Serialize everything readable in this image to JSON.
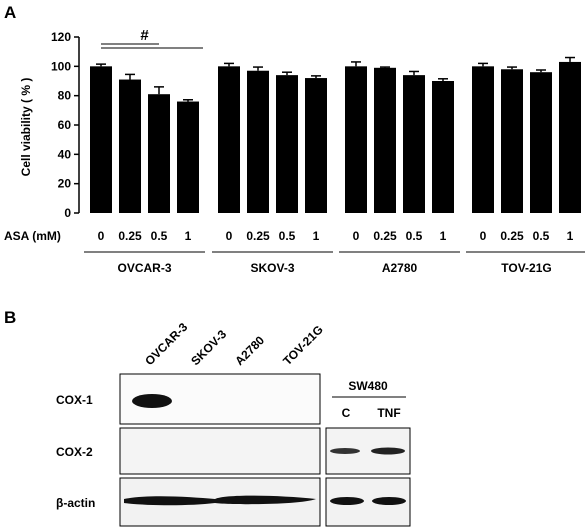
{
  "panel_a": {
    "label": "A",
    "ylabel": "Cell viability ( % )",
    "yticks": [
      "0",
      "20",
      "40",
      "60",
      "80",
      "100",
      "120"
    ],
    "dose_label": "ASA (mM)",
    "doses": [
      "0",
      "0.25",
      "0.5",
      "1"
    ],
    "significance": "#"
  },
  "panel_b": {
    "label": "B",
    "lanes": [
      "OVCAR-3",
      "SKOV-3",
      "A2780",
      "TOV-21G"
    ],
    "rows": [
      "COX-1",
      "COX-2",
      "β-actin"
    ],
    "control_title": "SW480",
    "control_lanes": [
      "C",
      "TNF"
    ]
  },
  "chart_data": {
    "type": "bar",
    "ylabel": "Cell viability ( % )",
    "ylim": [
      0,
      120
    ],
    "yticks": [
      0,
      20,
      40,
      60,
      80,
      100,
      120
    ],
    "x_label": "ASA (mM)",
    "doses": [
      "0",
      "0.25",
      "0.5",
      "1"
    ],
    "groups": [
      {
        "name": "OVCAR-3",
        "values": [
          100,
          91,
          81,
          76
        ],
        "errors": [
          1.5,
          3.5,
          5.0,
          1.2
        ]
      },
      {
        "name": "SKOV-3",
        "values": [
          100,
          97,
          94,
          92
        ],
        "errors": [
          2.0,
          2.5,
          2.0,
          1.5
        ]
      },
      {
        "name": "A2780",
        "values": [
          100,
          99,
          94,
          90
        ],
        "errors": [
          3.0,
          0.5,
          2.5,
          1.5
        ]
      },
      {
        "name": "TOV-21G",
        "values": [
          100,
          98,
          96,
          103
        ],
        "errors": [
          2.0,
          1.5,
          1.5,
          3.0
        ]
      }
    ],
    "bar_color": "#000000",
    "significance": {
      "label": "#",
      "group": "OVCAR-3",
      "comparisons": [
        [
          "0",
          "0.5"
        ],
        [
          "0",
          "1"
        ]
      ]
    }
  }
}
